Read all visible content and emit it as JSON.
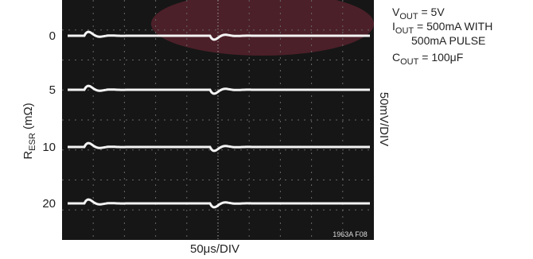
{
  "rows": [
    "0",
    "5",
    "10",
    "20"
  ],
  "y_label": {
    "main": "R",
    "sub": "ESR",
    "rest": " (mΩ)"
  },
  "right_label": "50mV/DIV",
  "bottom_label": "50μs/DIV",
  "figure_id": "1963A F08",
  "conditions": [
    {
      "main": "V",
      "sub": "OUT",
      "rest": " = 5V"
    },
    {
      "main": "I",
      "sub": "OUT",
      "rest": " = 500mA WITH"
    },
    {
      "main": "",
      "sub": "",
      "rest": "500mA PULSE"
    },
    {
      "main": "C",
      "sub": "OUT",
      "rest": " = 100μF"
    }
  ]
}
